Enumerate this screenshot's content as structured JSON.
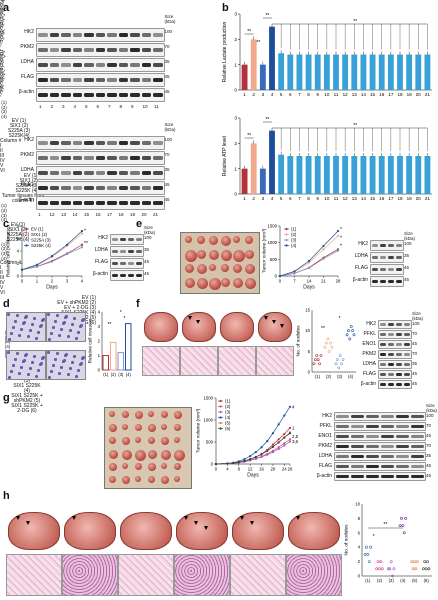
{
  "panels": [
    "a",
    "b",
    "c",
    "d",
    "e",
    "f",
    "g",
    "h"
  ],
  "a": {
    "top_lanes": [
      "EV",
      "SIX1",
      "S225A",
      "S225D",
      "S225E",
      "S225G",
      "S225H",
      "S225K",
      "S225L",
      "S225M",
      "S225V"
    ],
    "bottom_lanes": [
      "EV",
      "SIX1",
      "S225N",
      "S225Q",
      "S225P",
      "S225Y",
      "S225C",
      "S225W",
      "S225R",
      "S225I",
      "S225T"
    ],
    "rows": [
      "HK2",
      "PKM2",
      "LDHA",
      "FLAG",
      "β-actin"
    ],
    "kda_header": "Size (kDa)",
    "kda_values": [
      "100",
      "70",
      "35",
      "45",
      "45"
    ],
    "top_numbers": [
      "1",
      "2",
      "3",
      "4",
      "5",
      "6",
      "7",
      "8",
      "9",
      "10",
      "11"
    ],
    "bottom_numbers": [
      "1",
      "12",
      "13",
      "14",
      "15",
      "16",
      "17",
      "18",
      "19",
      "20",
      "21"
    ]
  },
  "b": {
    "chart_data": [
      {
        "type": "bar",
        "ylabel": "Relative Lactate production",
        "ylim": [
          0,
          3
        ],
        "yticks": [
          "0",
          "1",
          "2",
          "3"
        ],
        "categories": [
          "1",
          "2",
          "3",
          "4",
          "5",
          "6",
          "7",
          "8",
          "9",
          "10",
          "11",
          "12",
          "13",
          "14",
          "15",
          "16",
          "17",
          "18",
          "19",
          "20",
          "21"
        ],
        "values": [
          1.0,
          2.0,
          1.0,
          2.5,
          1.45,
          1.4,
          1.4,
          1.4,
          1.4,
          1.4,
          1.4,
          1.4,
          1.4,
          1.4,
          1.4,
          1.4,
          1.4,
          1.4,
          1.4,
          1.4,
          1.4
        ],
        "colors": [
          "#b5323a",
          "#f0a98c",
          "#3a6bb8",
          "#1d4f9a",
          "#3aa0d8"
        ],
        "sig": [
          "**",
          "**",
          "**",
          "**"
        ]
      },
      {
        "type": "bar",
        "ylabel": "Relative ATP level",
        "ylim": [
          0,
          3
        ],
        "yticks": [
          "0",
          "1",
          "2",
          "3"
        ],
        "categories": [
          "1",
          "2",
          "3",
          "4",
          "5",
          "6",
          "7",
          "8",
          "9",
          "10",
          "11",
          "12",
          "13",
          "14",
          "15",
          "16",
          "17",
          "18",
          "19",
          "20",
          "21"
        ],
        "values": [
          1.0,
          2.0,
          1.0,
          2.5,
          1.55,
          1.5,
          1.5,
          1.5,
          1.5,
          1.5,
          1.5,
          1.5,
          1.5,
          1.5,
          1.5,
          1.5,
          1.5,
          1.5,
          1.5,
          1.5,
          1.5
        ],
        "colors": [
          "#b5323a",
          "#f0a98c",
          "#3a6bb8",
          "#1d4f9a",
          "#3aa0d8"
        ],
        "sig": [
          "**",
          "**",
          "**"
        ]
      }
    ]
  },
  "c": {
    "chart_data": {
      "type": "line",
      "ylabel": "Relative cell proliferation",
      "xlabel": "Days",
      "x": [
        0,
        1,
        2,
        3,
        4
      ],
      "ylim": [
        0,
        8
      ],
      "yticks": [
        "0",
        "2",
        "4",
        "6",
        "8"
      ],
      "xticks": [
        "0",
        "1",
        "2",
        "3",
        "4"
      ],
      "series": [
        {
          "name": "EV (1)",
          "values": [
            1,
            1.5,
            2.4,
            3.6,
            5.0
          ],
          "color": "#b5323a"
        },
        {
          "name": "SIX1 (2)",
          "values": [
            1,
            1.7,
            3.0,
            4.8,
            6.8
          ],
          "color": "#f0a98c"
        },
        {
          "name": "S225A (3)",
          "values": [
            1,
            1.5,
            2.3,
            3.5,
            4.6
          ],
          "color": "#7a9ad0"
        },
        {
          "name": "S225K (4)",
          "values": [
            1,
            1.8,
            3.2,
            5.0,
            7.2
          ],
          "color": "#1d4f9a"
        }
      ],
      "sig": [
        "*",
        "**"
      ]
    },
    "blot": {
      "lanes": [
        "(1)",
        "(2)",
        "(3)",
        "(4)"
      ],
      "rows": [
        "HK2",
        "LDHA",
        "FLAG",
        "β-actin"
      ],
      "kda_header": "Size (kDa)",
      "kda_values": [
        "100",
        "35",
        "45",
        "45"
      ]
    }
  },
  "d": {
    "images": [
      "EV (1)",
      "SIX1 (2)",
      "S225A (3)",
      "S225K(4)"
    ],
    "chart_data": {
      "type": "bar",
      "ylabel": "Relative cell invasion",
      "categories": [
        "(1)",
        "(2)",
        "(3)",
        "(4)"
      ],
      "values": [
        1.0,
        1.9,
        1.2,
        3.2
      ],
      "ylim": [
        0,
        4
      ],
      "yticks": [
        "0",
        "1",
        "2",
        "3",
        "4"
      ],
      "colors": [
        "#b5323a",
        "#f0a98c",
        "#7a9ad0",
        "#1d4f9a"
      ],
      "sig": [
        "**",
        "*",
        "*"
      ]
    }
  },
  "e": {
    "column_header": "Column #",
    "columns": [
      "I",
      "II",
      "III",
      "IV",
      "V",
      "VI"
    ],
    "rows": [
      "EV (1)",
      "SIX1 (2)",
      "S225A (3)",
      "S225K (4)"
    ],
    "chart_data": {
      "type": "line",
      "ylabel": "Tumor volume (mm³)",
      "xlabel": "Days",
      "x": [
        0,
        7,
        14,
        21,
        28
      ],
      "xticks": [
        "0",
        "7",
        "14",
        "21",
        "28"
      ],
      "ylim": [
        0,
        1500
      ],
      "yticks": [
        "0",
        "500",
        "1000",
        "1500"
      ],
      "series": [
        {
          "name": "(1)",
          "values": [
            0,
            80,
            250,
            550,
            800
          ],
          "color": "#b5323a"
        },
        {
          "name": "(2)",
          "values": [
            0,
            120,
            400,
            800,
            1200
          ],
          "color": "#f0a98c"
        },
        {
          "name": "(3)",
          "values": [
            0,
            80,
            240,
            520,
            760
          ],
          "color": "#7a9ad0"
        },
        {
          "name": "(4)",
          "values": [
            0,
            140,
            450,
            900,
            1350
          ],
          "color": "#1d4f9a"
        }
      ],
      "sig": [
        "*",
        "*",
        "*"
      ]
    },
    "blot": {
      "title": "Tumor tissues from column III",
      "lanes": [
        "(1)",
        "(2)",
        "(3)",
        "(4)"
      ],
      "rows": [
        "HK2",
        "LDHA",
        "FLAG",
        "β-actin"
      ],
      "kda_header": "Size (kDa)",
      "kda_values": [
        "100",
        "35",
        "45",
        "45"
      ]
    }
  },
  "f": {
    "images": [
      "EV (1)",
      "SIX1 (2)",
      "S225A (3)",
      "S225K (4)"
    ],
    "chart_data": {
      "type": "scatter",
      "ylabel": "No. of nodules",
      "categories": [
        "(1)",
        "(2)",
        "(3)",
        "(4)"
      ],
      "ylim": [
        0,
        15
      ],
      "yticks": [
        "0",
        "5",
        "10",
        "15"
      ],
      "points": [
        [
          2,
          3,
          4,
          3,
          2,
          4
        ],
        [
          6,
          7,
          8,
          5,
          7,
          6
        ],
        [
          2,
          3,
          1,
          4,
          2,
          3
        ],
        [
          9,
          10,
          8,
          11,
          10,
          9
        ]
      ],
      "colors": [
        "#b5323a",
        "#f0a98c",
        "#7a9ad0",
        "#1d4f9a"
      ],
      "sig": [
        "**",
        "*"
      ]
    },
    "blot": {
      "lanes": [
        "(1)",
        "(2)",
        "(3)",
        "(4)"
      ],
      "rows": [
        "HK2",
        "PFKL",
        "ENO1",
        "PKM2",
        "LDHA",
        "FLAG",
        "β-actin"
      ],
      "kda_header": "Size (kDa)",
      "kda_values": [
        "100",
        "70",
        "45",
        "70",
        "35",
        "45",
        "45"
      ]
    }
  },
  "g": {
    "column_header": "Column #",
    "columns": [
      "I",
      "II",
      "III",
      "IV",
      "V",
      "VI"
    ],
    "rows": [
      "EV (1)",
      "EV + shPKM2 (2)",
      "EV + 2-DG (3)",
      "SIX1 S225K (4)",
      "SIX1 S225K + shPKM2 (5)",
      "SIX1 S225K + 2-DG (6)"
    ],
    "chart_data": {
      "type": "line",
      "ylabel": "Tumor volume (mm³)",
      "xlabel": "Days",
      "x": [
        0,
        4,
        6,
        8,
        10,
        12,
        14,
        16,
        18,
        20,
        22,
        24,
        26
      ],
      "xticks": [
        "0",
        "4",
        "8",
        "12",
        "16",
        "20",
        "24",
        "26"
      ],
      "ylim": [
        0,
        1500
      ],
      "yticks": [
        "0",
        "500",
        "1000",
        "1500"
      ],
      "series": [
        {
          "name": "(1)",
          "values": [
            0,
            10,
            20,
            40,
            70,
            110,
            160,
            230,
            320,
            440,
            560,
            680,
            820
          ],
          "color": "#b5323a"
        },
        {
          "name": "(2)",
          "values": [
            0,
            10,
            15,
            30,
            55,
            85,
            125,
            170,
            230,
            300,
            380,
            470,
            560
          ],
          "color": "#d84a8a"
        },
        {
          "name": "(3)",
          "values": [
            0,
            10,
            15,
            30,
            50,
            80,
            115,
            160,
            210,
            270,
            340,
            420,
            510
          ],
          "color": "#a060c0"
        },
        {
          "name": "(4)",
          "values": [
            0,
            15,
            30,
            60,
            110,
            180,
            270,
            380,
            520,
            700,
            900,
            1100,
            1300
          ],
          "color": "#1d4f9a"
        },
        {
          "name": "(5)",
          "values": [
            0,
            10,
            20,
            40,
            70,
            110,
            160,
            220,
            300,
            390,
            490,
            600,
            720
          ],
          "color": "#e08050"
        },
        {
          "name": "(6)",
          "values": [
            0,
            10,
            20,
            40,
            70,
            110,
            160,
            220,
            300,
            390,
            490,
            600,
            700
          ],
          "color": "#404040"
        }
      ],
      "end_labels": [
        "4",
        "1",
        "2,5",
        "3,6"
      ]
    },
    "blot": {
      "title": "Tumor tissues from column III",
      "lanes": [
        "(1)",
        "(2)",
        "(3)",
        "(4)",
        "(5)",
        "(6)"
      ],
      "rows": [
        "HK2",
        "PFKL",
        "ENO1",
        "PKM2",
        "LDHA",
        "FLAG",
        "β-actin"
      ],
      "kda_header": "Size (kDa)",
      "kda_values": [
        "100",
        "70",
        "45",
        "70",
        "35",
        "45",
        "45"
      ]
    }
  },
  "h": {
    "images": [
      "EV (1)",
      "EV + shPKM2 (2)",
      "EV + 2-DG (3)",
      "SIX1 S225K (4)",
      "SIX1 S225K + shPKM2 (5)",
      "SIX1 S225K + 2-DG (6)"
    ],
    "chart_data": {
      "type": "scatter",
      "ylabel": "No. of nodules",
      "categories": [
        "(1)",
        "(2)",
        "(3)",
        "(4)",
        "(5)",
        "(6)"
      ],
      "ylim": [
        0,
        10
      ],
      "yticks": [
        "0",
        "2",
        "4",
        "6",
        "8",
        "10"
      ],
      "points": [
        [
          3,
          4,
          3,
          2,
          4
        ],
        [
          1,
          2,
          1,
          2,
          1
        ],
        [
          1,
          1,
          2,
          0,
          1
        ],
        [
          7,
          8,
          7,
          6,
          8
        ],
        [
          2,
          1,
          2,
          1,
          2
        ],
        [
          1,
          2,
          1,
          2,
          1
        ]
      ],
      "colors": [
        "#3a6bb8",
        "#d84a8a",
        "#a060c0",
        "#6a2a9a",
        "#e08050",
        "#404040"
      ],
      "sig": [
        "*",
        "**"
      ]
    }
  }
}
